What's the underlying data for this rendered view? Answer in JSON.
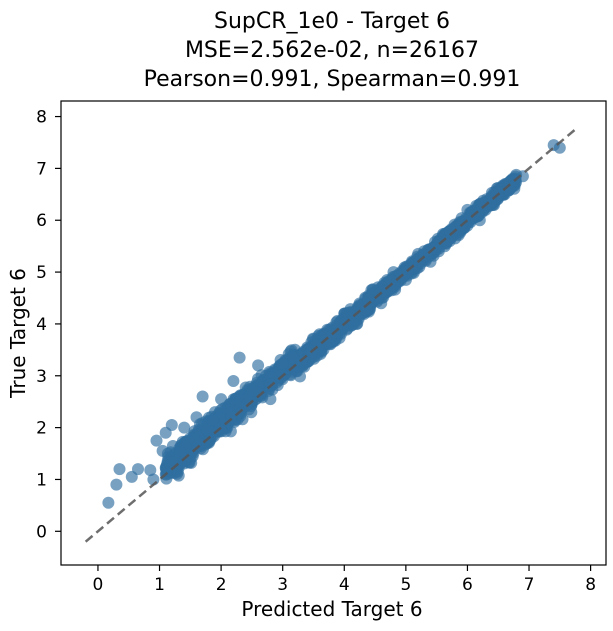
{
  "chart_data": {
    "type": "scatter",
    "title_lines": [
      "SupCR_1e0 - Target 6",
      "MSE=2.562e-02, n=26167",
      "Pearson=0.991, Spearman=0.991"
    ],
    "xlabel": "Predicted Target 6",
    "ylabel": "True Target 6",
    "xlim": [
      -0.6,
      8.25
    ],
    "ylim": [
      -0.65,
      8.3
    ],
    "xticks": [
      "0",
      "1",
      "2",
      "3",
      "4",
      "5",
      "6",
      "7",
      "8"
    ],
    "yticks": [
      "0",
      "1",
      "2",
      "3",
      "4",
      "5",
      "6",
      "7",
      "8"
    ],
    "grid": false,
    "reference_line": {
      "from": [
        -0.2,
        -0.2
      ],
      "to": [
        7.8,
        7.8
      ],
      "style": "dashed",
      "color": "#555555"
    },
    "point_color": "#2f6f9f",
    "series": [
      {
        "points_sample": [
          [
            0.17,
            0.55
          ],
          [
            0.3,
            0.9
          ],
          [
            0.35,
            1.2
          ],
          [
            0.55,
            1.05
          ],
          [
            0.65,
            1.2
          ],
          [
            0.85,
            1.18
          ],
          [
            0.9,
            1.0
          ],
          [
            0.95,
            1.75
          ],
          [
            1.05,
            1.55
          ],
          [
            1.1,
            1.9
          ],
          [
            1.2,
            2.05
          ],
          [
            1.25,
            1.5
          ],
          [
            1.35,
            1.65
          ],
          [
            1.4,
            2.0
          ],
          [
            1.5,
            1.8
          ],
          [
            1.6,
            2.2
          ],
          [
            1.7,
            2.6
          ],
          [
            1.75,
            1.9
          ],
          [
            1.9,
            2.3
          ],
          [
            2.0,
            2.55
          ],
          [
            2.1,
            2.0
          ],
          [
            2.2,
            2.9
          ],
          [
            2.3,
            3.35
          ],
          [
            2.4,
            2.5
          ],
          [
            2.5,
            2.6
          ],
          [
            2.6,
            3.2
          ],
          [
            2.7,
            2.85
          ],
          [
            2.8,
            2.55
          ],
          [
            3.0,
            3.1
          ],
          [
            3.2,
            3.5
          ],
          [
            3.4,
            3.3
          ],
          [
            3.6,
            3.8
          ],
          [
            3.8,
            3.7
          ],
          [
            4.0,
            4.2
          ],
          [
            4.2,
            4.0
          ],
          [
            4.4,
            4.5
          ],
          [
            4.6,
            4.4
          ],
          [
            4.8,
            5.0
          ],
          [
            5.0,
            4.85
          ],
          [
            5.2,
            5.35
          ],
          [
            5.4,
            5.2
          ],
          [
            5.6,
            5.7
          ],
          [
            5.8,
            5.65
          ],
          [
            6.0,
            6.2
          ],
          [
            6.2,
            6.0
          ],
          [
            6.4,
            6.45
          ],
          [
            6.7,
            6.75
          ],
          [
            6.9,
            6.85
          ],
          [
            7.4,
            7.45
          ],
          [
            7.5,
            7.4
          ]
        ]
      }
    ]
  }
}
